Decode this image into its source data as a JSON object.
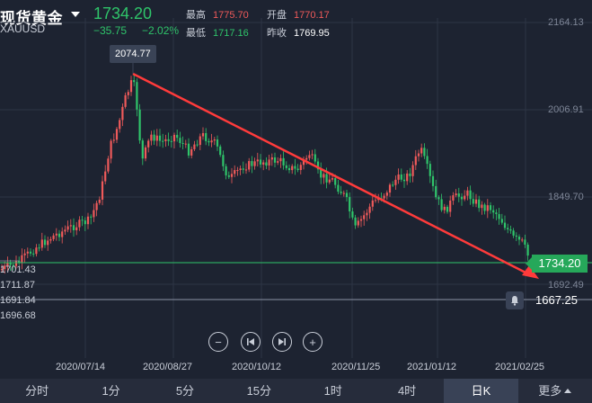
{
  "header": {
    "title": "现货黄金",
    "symbol": "XAUUSD",
    "price": "1734.20",
    "change": "−35.75",
    "change_pct": "−2.02%",
    "stats": {
      "high_label": "最高",
      "high": "1775.70",
      "open_label": "开盘",
      "open": "1770.17",
      "low_label": "最低",
      "low": "1717.16",
      "prev_close_label": "昨收",
      "prev_close": "1769.95"
    }
  },
  "colors": {
    "up": "#f05a5a",
    "down": "#2fc46a",
    "trendline": "#ff3b3b",
    "background": "#1d2331"
  },
  "chart": {
    "tooltip": "2074.77",
    "price_badge": "1734.20",
    "alert_price": "1667.25",
    "y_labels": [
      "2164.13",
      "2006.91",
      "1849.70",
      "1692.49"
    ],
    "left_labels": [
      "1701.43",
      "1711.87",
      "1691.84",
      "1696.68"
    ],
    "x_labels": [
      "2020/07/14",
      "2020/08/27",
      "2020/10/12",
      "2020/11/25",
      "2021/01/12",
      "2021/02/25"
    ]
  },
  "nav": {
    "zoom_out": "−",
    "prev": "⏮",
    "next": "⏭",
    "zoom_in": "+"
  },
  "tabs": [
    "分时",
    "1分",
    "5分",
    "15分",
    "1时",
    "4时",
    "日K",
    "更多"
  ],
  "active_tab": "日K"
}
